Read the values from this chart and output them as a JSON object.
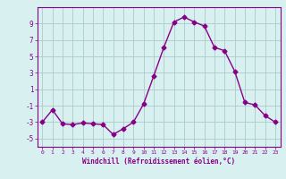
{
  "x": [
    0,
    1,
    2,
    3,
    4,
    5,
    6,
    7,
    8,
    9,
    10,
    11,
    12,
    13,
    14,
    15,
    16,
    17,
    18,
    19,
    20,
    21,
    22,
    23
  ],
  "y": [
    -3,
    -1.5,
    -3.2,
    -3.3,
    -3.1,
    -3.2,
    -3.3,
    -4.5,
    -3.8,
    -3.0,
    -0.8,
    2.6,
    6.1,
    9.2,
    9.8,
    9.2,
    8.7,
    6.1,
    5.7,
    3.2,
    -0.6,
    -0.9,
    -2.2,
    -3.0
  ],
  "line_color": "#880088",
  "marker": "D",
  "marker_size": 2.5,
  "bg_color": "#d8f0f0",
  "grid_color": "#aacccc",
  "xlabel": "Windchill (Refroidissement éolien,°C)",
  "xlabel_color": "#880088",
  "tick_color": "#880088",
  "ylim": [
    -6,
    11
  ],
  "xlim": [
    -0.5,
    23.5
  ],
  "yticks": [
    -5,
    -3,
    -1,
    1,
    3,
    5,
    7,
    9
  ],
  "xticks": [
    0,
    1,
    2,
    3,
    4,
    5,
    6,
    7,
    8,
    9,
    10,
    11,
    12,
    13,
    14,
    15,
    16,
    17,
    18,
    19,
    20,
    21,
    22,
    23
  ],
  "spine_color": "#880088",
  "fig_bg": "#d8f0f0"
}
